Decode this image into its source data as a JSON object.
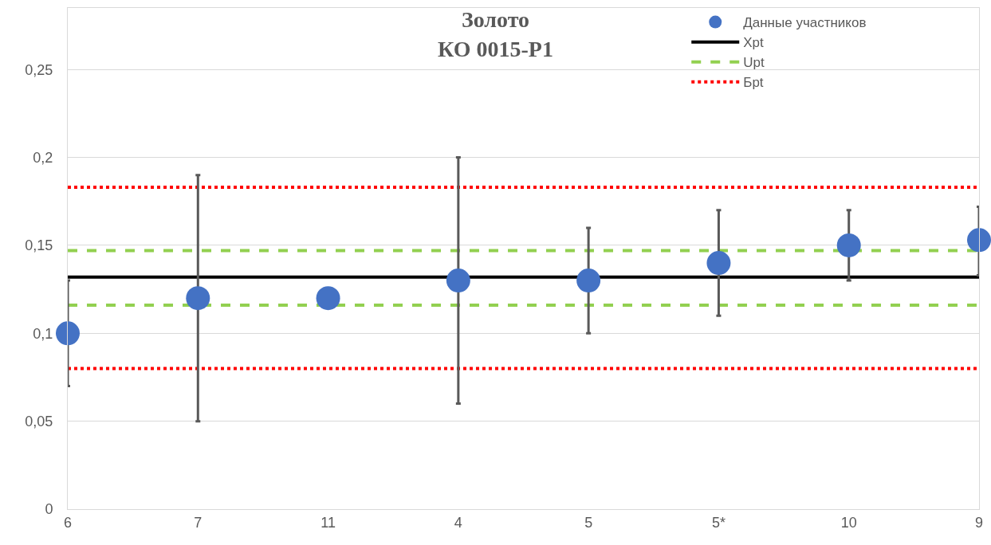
{
  "chart_data": {
    "type": "scatter",
    "title": "Золото\nКО 0015-Р1",
    "categories": [
      "6",
      "7",
      "11",
      "4",
      "5",
      "5*",
      "10",
      "9"
    ],
    "series": [
      {
        "name": "Данные участников",
        "color": "#4472c4",
        "values": [
          0.1,
          0.12,
          0.12,
          0.13,
          0.13,
          0.14,
          0.15,
          0.153
        ],
        "errors": [
          0.03,
          0.07,
          null,
          0.07,
          0.03,
          0.03,
          0.02,
          [
            0.133,
            0.172
          ]
        ]
      }
    ],
    "ylim": [
      0,
      0.285
    ],
    "yticks": [
      0,
      {
        "value": 0.05,
        "label": "0,05"
      },
      {
        "value": 0.1,
        "label": "0,1"
      },
      {
        "value": 0.15,
        "label": "0,15"
      },
      {
        "value": 0.2,
        "label": "0,2"
      },
      {
        "value": 0.25,
        "label": "0,25"
      }
    ],
    "ref_lines": [
      {
        "axis": "y",
        "value": 0.132,
        "label": "Xpt",
        "color": "#000000",
        "line_style": "solid"
      },
      {
        "axis": "y",
        "value": 0.147,
        "label": "Upt",
        "color": "#92d050",
        "line_style": "dashed"
      },
      {
        "axis": "y",
        "value": 0.116,
        "color": "#92d050",
        "line_style": "dashed"
      },
      {
        "axis": "y",
        "value": 0.183,
        "label": "Бpt",
        "color": "#ff0000",
        "line_style": "dotted"
      },
      {
        "axis": "y",
        "value": 0.08,
        "color": "#ff0000",
        "line_style": "dotted"
      }
    ],
    "grid": "y",
    "legend": "top right",
    "marker": "circle"
  }
}
